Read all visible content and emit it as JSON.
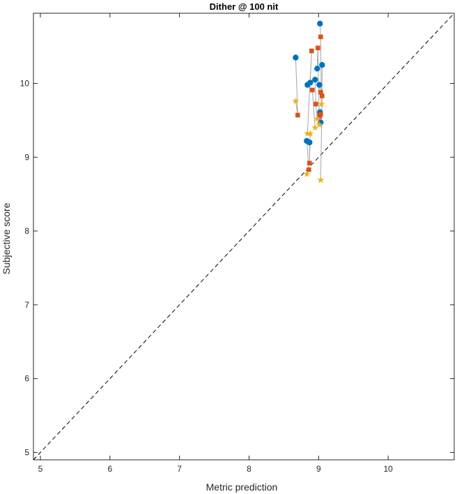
{
  "chart_data": {
    "type": "scatter",
    "title": "Dither @ 100 nit",
    "xlabel": "Metric prediction",
    "ylabel": "Subjective score",
    "xlim": [
      4.9,
      10.95
    ],
    "ylim": [
      4.9,
      10.95
    ],
    "xticks": [
      5,
      6,
      7,
      8,
      9,
      10
    ],
    "yticks": [
      5,
      6,
      7,
      8,
      9,
      10
    ],
    "grid": false,
    "legend": "none",
    "reference_line": {
      "x": [
        4.9,
        10.95
      ],
      "y": [
        4.9,
        10.95
      ],
      "style": "dashed",
      "color": "#000000"
    },
    "connector_color": "#a6a6a6",
    "series": [
      {
        "marker": "circle",
        "color": "#0072bd",
        "points": [
          {
            "x": 9.02,
            "y": 10.81
          },
          {
            "x": 8.67,
            "y": 10.35
          },
          {
            "x": 9.05,
            "y": 10.25
          },
          {
            "x": 8.98,
            "y": 10.2
          },
          {
            "x": 8.95,
            "y": 10.05
          },
          {
            "x": 8.88,
            "y": 10.01
          },
          {
            "x": 8.84,
            "y": 9.98
          },
          {
            "x": 9.01,
            "y": 9.98
          },
          {
            "x": 9.02,
            "y": 9.61
          },
          {
            "x": 9.03,
            "y": 9.47
          },
          {
            "x": 8.83,
            "y": 9.22
          },
          {
            "x": 8.87,
            "y": 9.2
          }
        ]
      },
      {
        "marker": "square",
        "color": "#d95319",
        "points": [
          {
            "x": 9.03,
            "y": 10.63
          },
          {
            "x": 8.99,
            "y": 10.48
          },
          {
            "x": 8.9,
            "y": 10.44
          },
          {
            "x": 8.91,
            "y": 9.91
          },
          {
            "x": 9.03,
            "y": 9.88
          },
          {
            "x": 9.05,
            "y": 9.83
          },
          {
            "x": 8.96,
            "y": 9.72
          },
          {
            "x": 9.03,
            "y": 9.58
          },
          {
            "x": 8.7,
            "y": 9.57
          },
          {
            "x": 9.01,
            "y": 9.55
          },
          {
            "x": 8.87,
            "y": 8.92
          },
          {
            "x": 8.86,
            "y": 8.83
          }
        ]
      },
      {
        "marker": "star",
        "color": "#edb120",
        "points": [
          {
            "x": 8.67,
            "y": 9.76
          },
          {
            "x": 9.04,
            "y": 9.72
          },
          {
            "x": 8.98,
            "y": 9.52
          },
          {
            "x": 9.01,
            "y": 9.44
          },
          {
            "x": 8.95,
            "y": 9.4
          },
          {
            "x": 8.84,
            "y": 9.32
          },
          {
            "x": 8.88,
            "y": 9.32
          },
          {
            "x": 8.83,
            "y": 8.77
          },
          {
            "x": 9.03,
            "y": 8.69
          }
        ]
      }
    ],
    "connections": [
      [
        [
          8.67,
          10.35
        ],
        [
          8.7,
          9.57
        ],
        [
          8.67,
          9.76
        ]
      ],
      [
        [
          8.83,
          9.22
        ],
        [
          8.86,
          8.83
        ],
        [
          8.83,
          8.77
        ]
      ],
      [
        [
          8.87,
          9.2
        ],
        [
          8.87,
          8.92
        ],
        [
          8.88,
          9.32
        ]
      ],
      [
        [
          8.88,
          10.01
        ],
        [
          8.9,
          10.44
        ],
        [
          8.84,
          9.32
        ]
      ],
      [
        [
          8.84,
          9.98
        ],
        [
          8.91,
          9.91
        ],
        [
          8.95,
          9.4
        ]
      ],
      [
        [
          8.95,
          10.05
        ],
        [
          8.96,
          9.72
        ],
        [
          8.98,
          9.52
        ]
      ],
      [
        [
          8.98,
          10.2
        ],
        [
          8.99,
          10.48
        ],
        [
          9.01,
          9.44
        ]
      ],
      [
        [
          9.02,
          10.81
        ],
        [
          9.03,
          10.63
        ],
        [
          9.04,
          9.72
        ]
      ],
      [
        [
          9.05,
          10.25
        ],
        [
          9.05,
          9.83
        ],
        [
          9.03,
          8.69
        ]
      ],
      [
        [
          9.01,
          9.98
        ],
        [
          9.03,
          9.88
        ]
      ],
      [
        [
          9.02,
          9.61
        ],
        [
          9.03,
          9.58
        ]
      ],
      [
        [
          9.03,
          9.47
        ],
        [
          9.01,
          9.55
        ]
      ]
    ]
  }
}
